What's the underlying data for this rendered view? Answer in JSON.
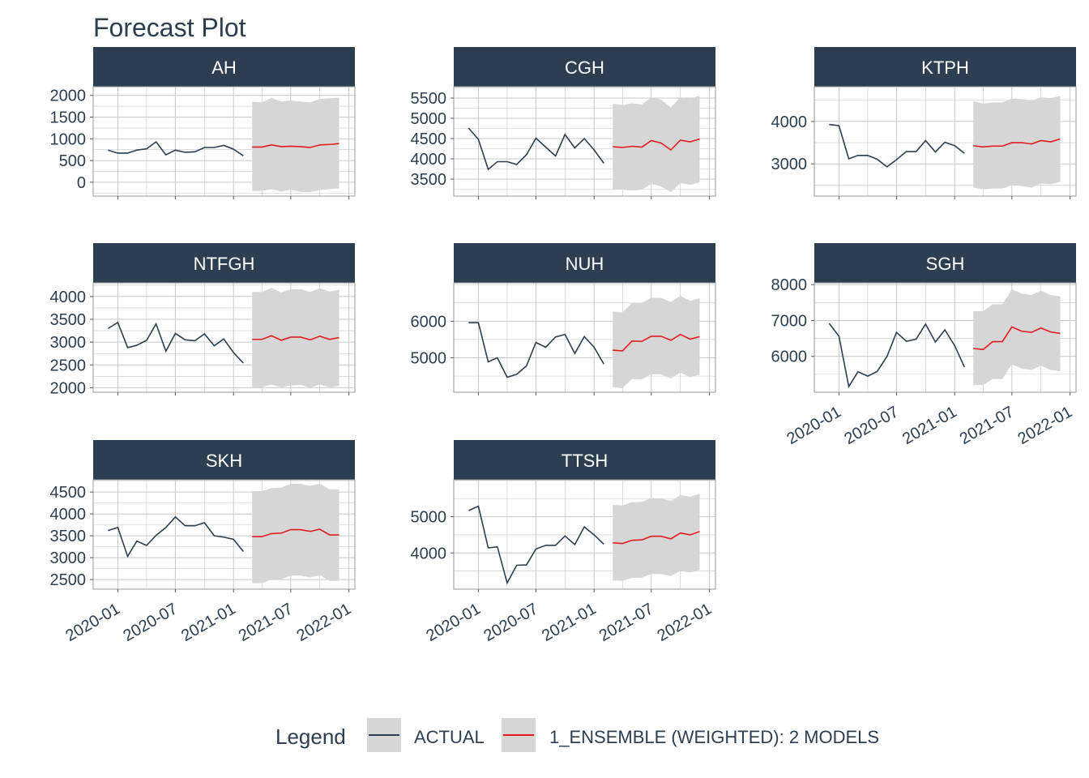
{
  "title": "Forecast Plot",
  "colors": {
    "actual": "#2c3e50",
    "forecast": "#e31a1c",
    "ribbon": "#d6d6d6",
    "strip": "#2c3e50",
    "strip_text": "#ffffff",
    "grid": "#c8c8c8",
    "text": "#2c3e50"
  },
  "legend": {
    "title": "Legend",
    "items": [
      "ACTUAL",
      "1_ENSEMBLE (WEIGHTED): 2 MODELS"
    ]
  },
  "chart_data": {
    "type": "line",
    "facets_layout": "3 columns, free y scales, shared date x axis",
    "x_axis": {
      "range": [
        "2019-10-15",
        "2022-01-20"
      ],
      "tick_labels": [
        "2020-01",
        "2020-07",
        "2021-01",
        "2021-07",
        "2022-01"
      ],
      "tick_dates": [
        "2020-01-01",
        "2020-07-01",
        "2021-01-01",
        "2021-07-01",
        "2022-01-01"
      ]
    },
    "actual_dates": [
      "2019-12-01",
      "2020-01-01",
      "2020-02-01",
      "2020-03-01",
      "2020-04-01",
      "2020-05-01",
      "2020-06-01",
      "2020-07-01",
      "2020-08-01",
      "2020-09-01",
      "2020-10-01",
      "2020-11-01",
      "2020-12-01",
      "2021-01-01",
      "2021-02-01"
    ],
    "forecast_dates": [
      "2021-03-01",
      "2021-04-01",
      "2021-05-01",
      "2021-06-01",
      "2021-07-01",
      "2021-08-01",
      "2021-09-01",
      "2021-10-01",
      "2021-11-01",
      "2021-12-01"
    ],
    "facets": [
      {
        "name": "AH",
        "y_ticks": [
          0,
          500,
          1000,
          1500,
          2000
        ],
        "ylim": [
          -320,
          2200
        ],
        "actual": [
          740,
          670,
          670,
          740,
          770,
          930,
          630,
          740,
          690,
          700,
          800,
          800,
          850,
          760,
          610
        ],
        "forecast": [
          810,
          810,
          860,
          820,
          830,
          820,
          800,
          860,
          870,
          890
        ],
        "lower": [
          -200,
          -200,
          -160,
          -220,
          -170,
          -220,
          -230,
          -180,
          -160,
          -140
        ],
        "upper": [
          1850,
          1840,
          1940,
          1860,
          1880,
          1860,
          1840,
          1920,
          1930,
          1950
        ]
      },
      {
        "name": "CGH",
        "y_ticks": [
          3500,
          4000,
          4500,
          5000,
          5500
        ],
        "ylim": [
          3080,
          5780
        ],
        "actual": [
          4760,
          4480,
          3740,
          3930,
          3930,
          3860,
          4100,
          4510,
          4290,
          4070,
          4600,
          4270,
          4500,
          4220,
          3890
        ],
        "forecast": [
          4300,
          4280,
          4310,
          4290,
          4450,
          4390,
          4220,
          4460,
          4420,
          4490
        ],
        "lower": [
          3240,
          3240,
          3220,
          3240,
          3380,
          3320,
          3180,
          3400,
          3360,
          3420
        ],
        "upper": [
          5360,
          5330,
          5370,
          5340,
          5520,
          5460,
          5270,
          5520,
          5480,
          5560
        ]
      },
      {
        "name": "KTPH",
        "y_ticks": [
          3000,
          4000
        ],
        "ylim": [
          2240,
          4820
        ],
        "actual": [
          3930,
          3900,
          3120,
          3200,
          3200,
          3110,
          2930,
          3100,
          3290,
          3290,
          3550,
          3280,
          3510,
          3430,
          3250
        ],
        "forecast": [
          3430,
          3400,
          3420,
          3420,
          3500,
          3500,
          3470,
          3550,
          3520,
          3590
        ],
        "lower": [
          2440,
          2400,
          2420,
          2420,
          2500,
          2480,
          2440,
          2540,
          2520,
          2580
        ],
        "upper": [
          4480,
          4420,
          4450,
          4450,
          4540,
          4530,
          4490,
          4570,
          4550,
          4600
        ]
      },
      {
        "name": "NTFGH",
        "y_ticks": [
          2000,
          2500,
          3000,
          3500,
          4000
        ],
        "ylim": [
          1900,
          4300
        ],
        "actual": [
          3300,
          3430,
          2880,
          2930,
          3040,
          3400,
          2800,
          3190,
          3050,
          3030,
          3180,
          2920,
          3070,
          2770,
          2540
        ],
        "forecast": [
          3060,
          3060,
          3140,
          3040,
          3110,
          3110,
          3050,
          3130,
          3060,
          3100
        ],
        "lower": [
          2010,
          2010,
          2070,
          2010,
          2050,
          2060,
          2000,
          2070,
          2010,
          2040
        ],
        "upper": [
          4100,
          4100,
          4190,
          4090,
          4160,
          4160,
          4100,
          4180,
          4110,
          4150
        ]
      },
      {
        "name": "NUH",
        "y_ticks": [
          5000,
          6000
        ],
        "ylim": [
          4060,
          7050
        ],
        "actual": [
          5960,
          5960,
          4890,
          5000,
          4470,
          4550,
          4780,
          5420,
          5290,
          5570,
          5640,
          5120,
          5580,
          5290,
          4830
        ],
        "forecast": [
          5210,
          5190,
          5460,
          5450,
          5590,
          5590,
          5480,
          5640,
          5510,
          5580
        ],
        "lower": [
          4200,
          4170,
          4420,
          4410,
          4550,
          4550,
          4440,
          4600,
          4470,
          4540
        ],
        "upper": [
          6270,
          6240,
          6510,
          6500,
          6640,
          6640,
          6530,
          6690,
          6560,
          6630
        ]
      },
      {
        "name": "SGH",
        "y_ticks": [
          6000,
          7000,
          8000
        ],
        "ylim": [
          5000,
          8050
        ],
        "actual": [
          6920,
          6560,
          5160,
          5570,
          5450,
          5580,
          6000,
          6670,
          6420,
          6480,
          6900,
          6400,
          6740,
          6300,
          5700
        ],
        "forecast": [
          6220,
          6190,
          6410,
          6410,
          6820,
          6700,
          6670,
          6790,
          6680,
          6640
        ],
        "lower": [
          5200,
          5200,
          5370,
          5370,
          5780,
          5660,
          5620,
          5740,
          5620,
          5580
        ],
        "upper": [
          7260,
          7260,
          7450,
          7450,
          7870,
          7750,
          7710,
          7830,
          7710,
          7670
        ]
      },
      {
        "name": "SKH",
        "y_ticks": [
          2500,
          3000,
          3500,
          4000,
          4500
        ],
        "ylim": [
          2280,
          4780
        ],
        "actual": [
          3620,
          3690,
          3030,
          3380,
          3280,
          3510,
          3690,
          3930,
          3730,
          3730,
          3800,
          3500,
          3470,
          3420,
          3140
        ],
        "forecast": [
          3480,
          3480,
          3550,
          3560,
          3640,
          3640,
          3600,
          3650,
          3520,
          3520
        ],
        "lower": [
          2420,
          2420,
          2500,
          2510,
          2590,
          2590,
          2550,
          2600,
          2470,
          2470
        ],
        "upper": [
          4520,
          4520,
          4590,
          4600,
          4690,
          4690,
          4640,
          4690,
          4560,
          4560
        ]
      },
      {
        "name": "TTSH",
        "y_ticks": [
          4000,
          5000
        ],
        "ylim": [
          3000,
          6020
        ],
        "actual": [
          5170,
          5290,
          4140,
          4170,
          3170,
          3660,
          3670,
          4110,
          4210,
          4210,
          4470,
          4230,
          4720,
          4500,
          4240
        ],
        "forecast": [
          4280,
          4260,
          4350,
          4360,
          4460,
          4460,
          4390,
          4550,
          4500,
          4590
        ],
        "lower": [
          3240,
          3230,
          3310,
          3320,
          3420,
          3420,
          3360,
          3510,
          3460,
          3540
        ],
        "upper": [
          5330,
          5310,
          5400,
          5410,
          5510,
          5500,
          5430,
          5600,
          5550,
          5630
        ]
      }
    ]
  }
}
